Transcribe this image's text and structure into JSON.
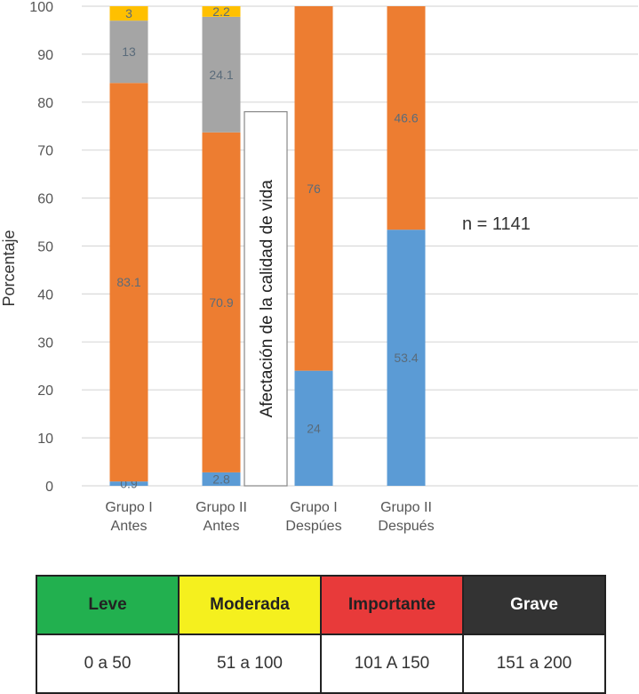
{
  "chart_data": {
    "type": "bar",
    "stacked": true,
    "categories": [
      [
        "Grupo I",
        "Antes"
      ],
      [
        "Grupo II",
        "Antes"
      ],
      [
        "Grupo I",
        "Despúes"
      ],
      [
        "Grupo II",
        "Después"
      ]
    ],
    "series": [
      {
        "color": "#5b9bd5",
        "values": [
          0.9,
          2.8,
          24,
          53.4
        ]
      },
      {
        "color": "#ed7d31",
        "values": [
          83.1,
          70.9,
          76,
          46.6
        ]
      },
      {
        "color": "#a5a5a5",
        "values": [
          13,
          24.1,
          0,
          0
        ]
      },
      {
        "color": "#ffc000",
        "values": [
          3,
          2.2,
          0,
          0
        ]
      }
    ],
    "ylabel": "Porcentaje",
    "ylim": [
      0,
      100
    ],
    "yticks": [
      0,
      10,
      20,
      30,
      40,
      50,
      60,
      70,
      80,
      90,
      100
    ],
    "grid": true,
    "annotation": "n = 1141",
    "callout": "Afectación de la calidad de vida"
  },
  "legend_table": {
    "headers": [
      {
        "label": "Leve",
        "color": "#22b04f",
        "text_color": "#222222"
      },
      {
        "label": "Moderada",
        "color": "#f5f01e",
        "text_color": "#222222"
      },
      {
        "label": "Importante",
        "color": "#e83a3a",
        "text_color": "#222222"
      },
      {
        "label": "Grave",
        "color": "#333333",
        "text_color": "#ffffff"
      }
    ],
    "ranges": [
      "0 a 50",
      "51 a 100",
      "101 A 150",
      "151 a 200"
    ]
  }
}
